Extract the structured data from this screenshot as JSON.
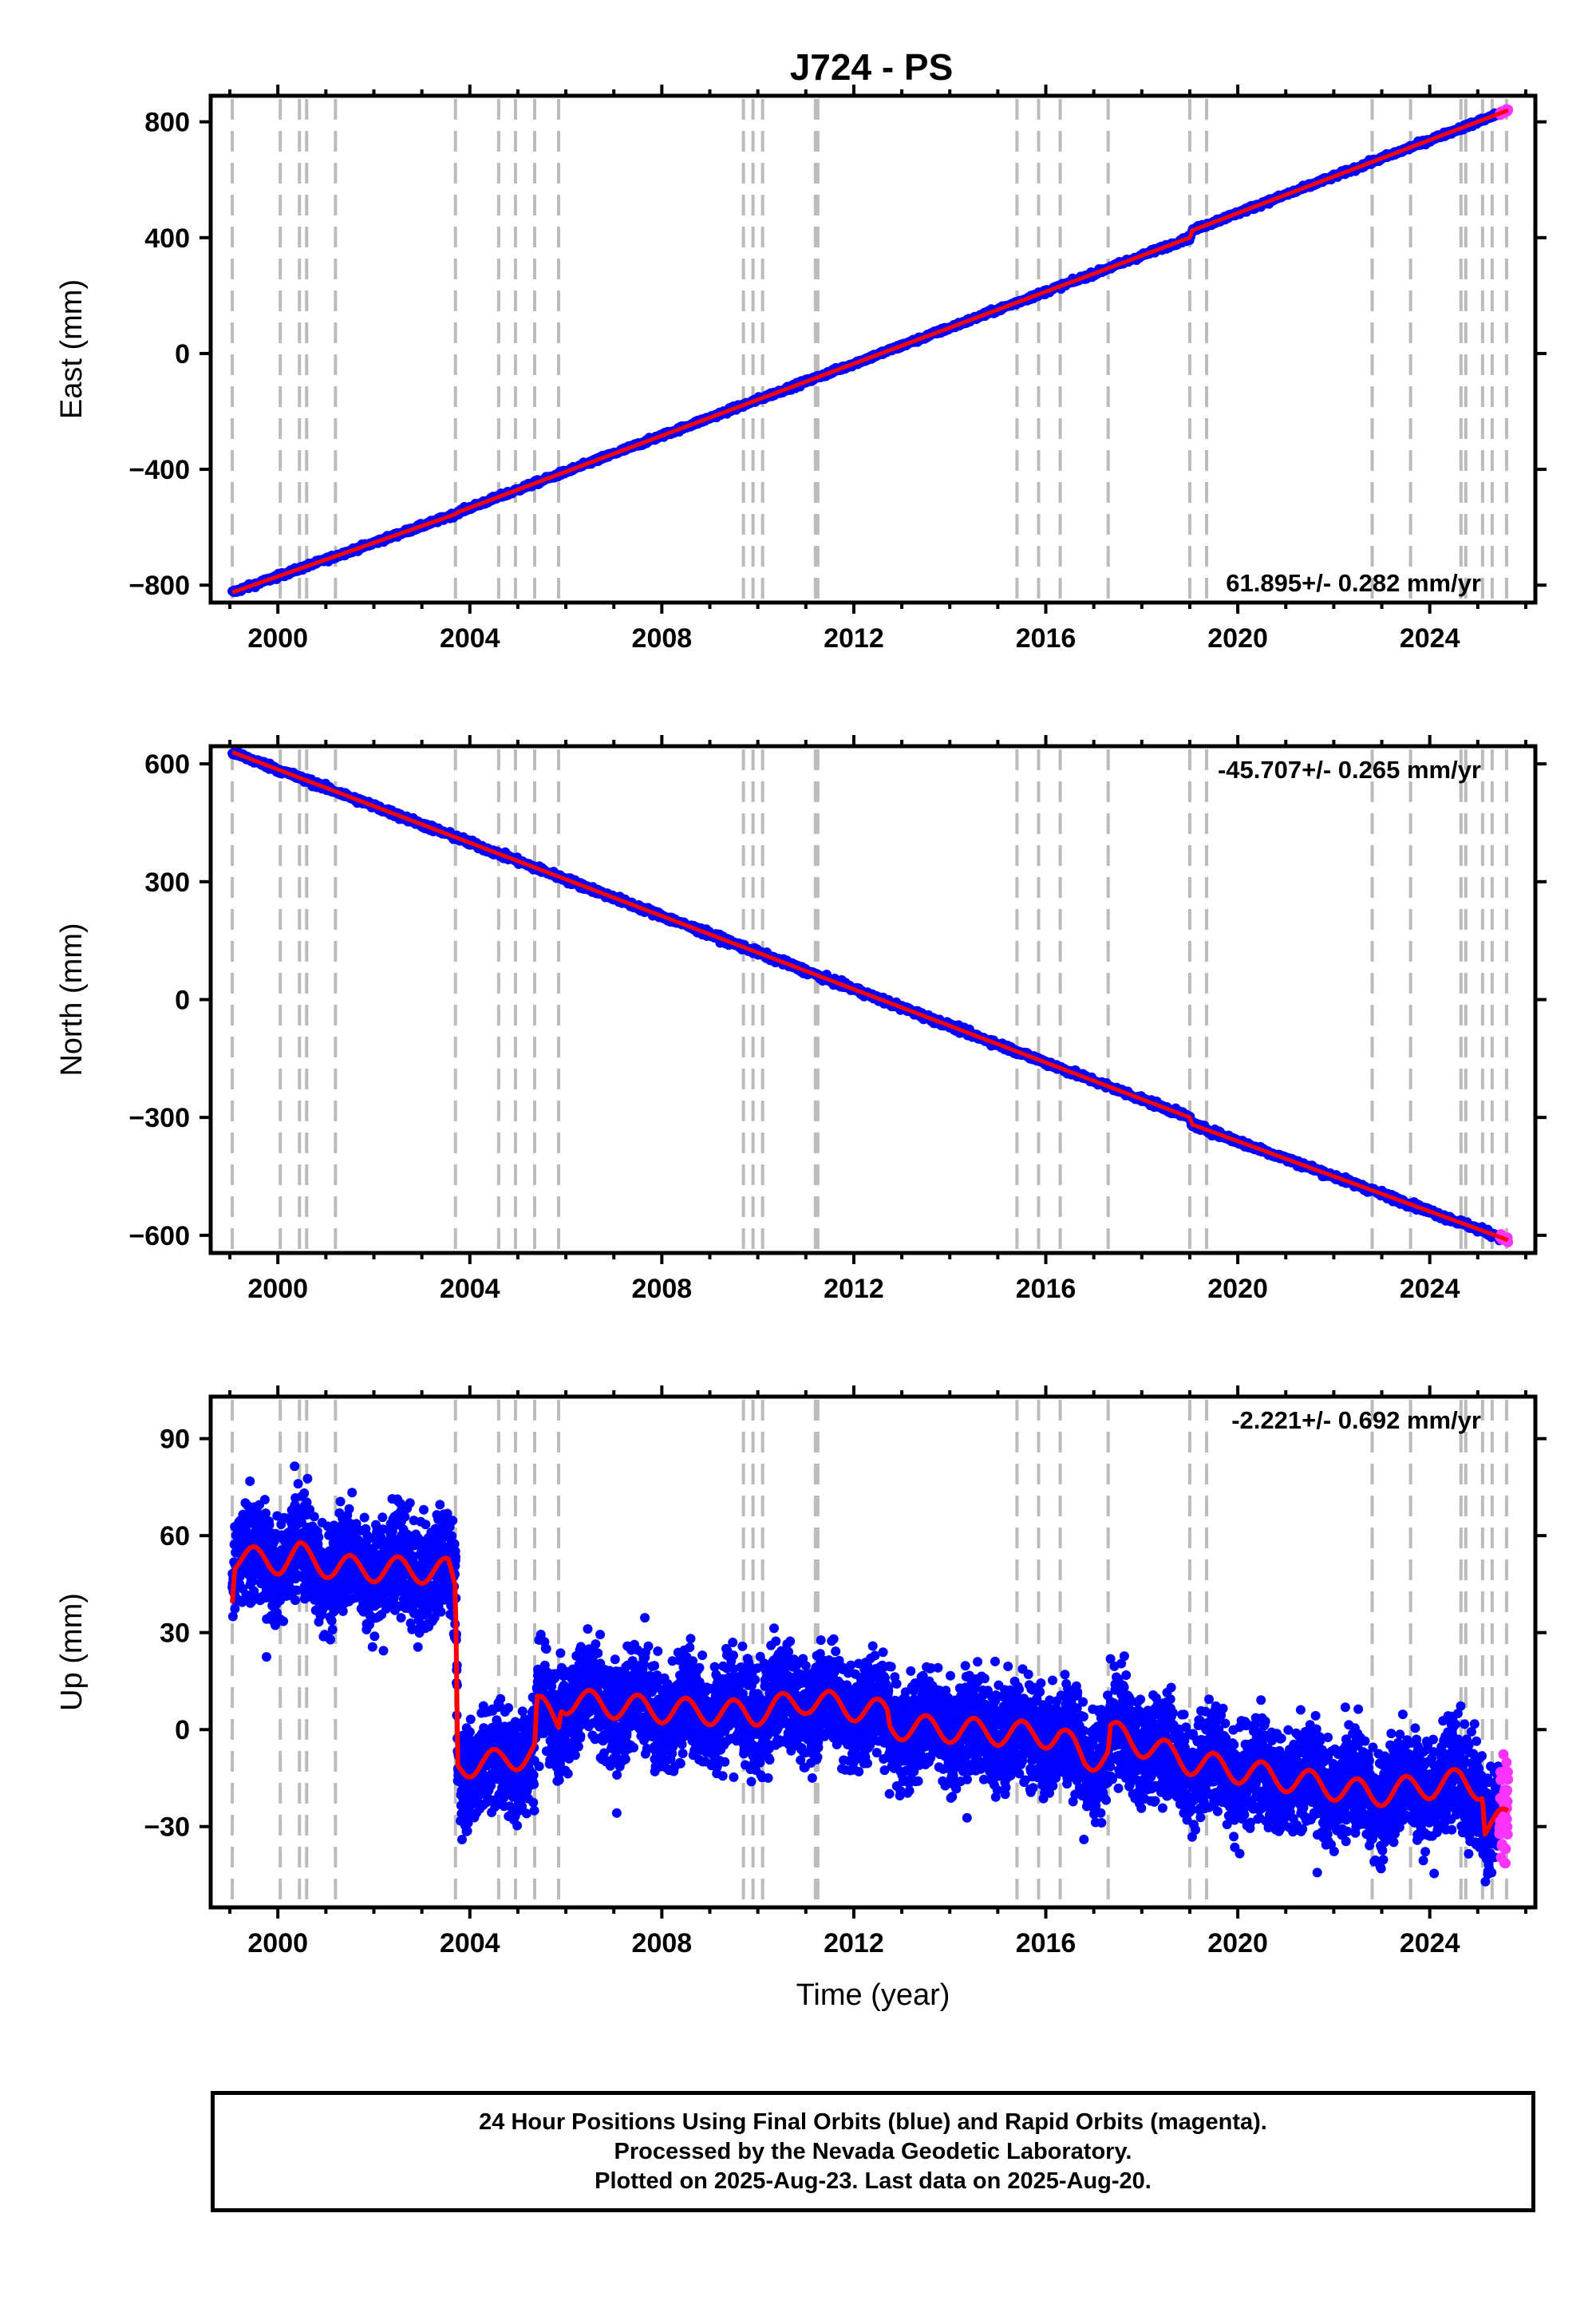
{
  "title": "J724 - PS",
  "colors": {
    "final_orbits": "#0000ff",
    "rapid_orbits": "#ff33ff",
    "model": "#ff0000",
    "event_lines": "#bbbbbb"
  },
  "x_axis": {
    "label": "Time (year)",
    "range": [
      1998.6,
      2026.2
    ],
    "ticks": [
      2000,
      2004,
      2008,
      2012,
      2016,
      2020,
      2024
    ],
    "tick_labels": [
      "2000",
      "2004",
      "2008",
      "2012",
      "2016",
      "2020",
      "2024"
    ]
  },
  "event_lines": [
    1999.05,
    2000.05,
    2000.45,
    2000.6,
    2001.2,
    2003.7,
    2004.6,
    2004.95,
    2005.35,
    2005.85,
    2009.7,
    2009.9,
    2010.1,
    2011.2,
    2011.25,
    2015.4,
    2015.85,
    2016.3,
    2017.3,
    2019.0,
    2019.35,
    2022.8,
    2023.6,
    2024.65,
    2024.75,
    2025.1,
    2025.3,
    2025.6
  ],
  "chart_data": [
    {
      "type": "scatter",
      "component": "east",
      "ylabel": "East (mm)",
      "ylim": [
        -860,
        890
      ],
      "yticks": [
        -800,
        -400,
        0,
        400,
        800
      ],
      "ytick_labels": [
        "−800",
        "−400",
        "0",
        "400",
        "800"
      ],
      "rate": "61.895+/- 0.282 mm/yr",
      "rate_position": "bottom-right",
      "x_start": 1999.05,
      "x_end": 2025.63,
      "rapid_from": 2025.45,
      "model_knots": {
        "x": [
          1999.05,
          2003.7,
          2003.75,
          2019.0,
          2019.05,
          2025.63
        ],
        "y": [
          -825,
          -555,
          -548,
          400,
          425,
          840
        ]
      },
      "scatter_noise_mm": 4,
      "series": [
        {
          "name": "Final Orbits (blue)",
          "color": "#0000ff"
        },
        {
          "name": "Rapid Orbits (magenta)",
          "color": "#ff33ff"
        },
        {
          "name": "model",
          "color": "#ff0000"
        }
      ]
    },
    {
      "type": "scatter",
      "component": "north",
      "ylabel": "North (mm)",
      "ylim": [
        -645,
        645
      ],
      "yticks": [
        -600,
        -300,
        0,
        300,
        600
      ],
      "ytick_labels": [
        "−600",
        "−300",
        "0",
        "300",
        "600"
      ],
      "rate": "-45.707+/- 0.265 mm/yr",
      "rate_position": "top-right",
      "x_start": 1999.05,
      "x_end": 2025.63,
      "rapid_from": 2025.45,
      "model_knots": {
        "x": [
          1999.05,
          2019.0,
          2019.05,
          2025.63
        ],
        "y": [
          630,
          -300,
          -318,
          -612
        ]
      },
      "scatter_noise_mm": 4,
      "series": [
        {
          "name": "Final Orbits (blue)",
          "color": "#0000ff"
        },
        {
          "name": "Rapid Orbits (magenta)",
          "color": "#ff33ff"
        },
        {
          "name": "model",
          "color": "#ff0000"
        }
      ]
    },
    {
      "type": "scatter",
      "component": "up",
      "ylabel": "Up (mm)",
      "ylim": [
        -55,
        103
      ],
      "yticks": [
        -30,
        0,
        30,
        60,
        90
      ],
      "ytick_labels": [
        "−30",
        "0",
        "30",
        "60",
        "90"
      ],
      "rate": "-2.221+/- 0.692 mm/yr",
      "rate_position": "top-right",
      "x_start": 1999.05,
      "x_end": 2025.63,
      "rapid_from": 2025.45,
      "model_knots": {
        "x": [
          1999.05,
          1999.1,
          2000.05,
          2000.45,
          2001.2,
          2003.55,
          2003.7,
          2003.75,
          2004.6,
          2005.35,
          2005.4,
          2005.85,
          2005.9,
          2008.0,
          2009.9,
          2011.0,
          2012.7,
          2012.75,
          2016.3,
          2016.8,
          2017.3,
          2017.35,
          2019.0,
          2022.8,
          2024.65,
          2025.1,
          2025.15,
          2025.63
        ],
        "y": [
          43,
          53,
          52,
          54,
          50,
          49,
          43,
          -11,
          -10,
          -7,
          7,
          3,
          9,
          6,
          5,
          9,
          5,
          1,
          -2,
          -9,
          -8,
          -1,
          -10,
          -20,
          -16,
          -18,
          -30,
          -28
        ]
      },
      "seasonal_amplitude_mm": 4,
      "scatter_noise_mm": 8,
      "series": [
        {
          "name": "Final Orbits (blue)",
          "color": "#0000ff"
        },
        {
          "name": "Rapid Orbits (magenta)",
          "color": "#ff33ff"
        },
        {
          "name": "model",
          "color": "#ff0000"
        }
      ]
    }
  ],
  "footer": {
    "line1": "24 Hour Positions Using Final Orbits (blue) and Rapid Orbits (magenta).",
    "line2": "Processed by the Nevada Geodetic Laboratory.",
    "line3": "Plotted on 2025-Aug-23. Last data on 2025-Aug-20."
  }
}
